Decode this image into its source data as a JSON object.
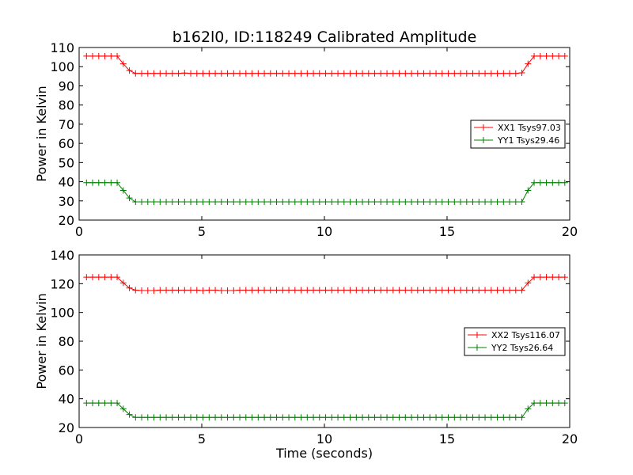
{
  "figure": {
    "title": "b162l0, ID:118249 Calibrated Amplitude"
  },
  "chart_data": [
    {
      "type": "line",
      "title": "b162l0, ID:118249 Calibrated Amplitude",
      "xlabel": "",
      "ylabel": "Power in Kelvin",
      "xlim": [
        0,
        20
      ],
      "ylim": [
        20,
        110
      ],
      "xticks": [
        0,
        5,
        10,
        15,
        20
      ],
      "yticks": [
        20,
        30,
        40,
        50,
        60,
        70,
        80,
        90,
        100,
        110
      ],
      "grid": false,
      "legend_position": "center-right",
      "x": [
        0.3,
        0.55,
        0.8,
        1.05,
        1.3,
        1.55,
        1.8,
        2.05,
        2.3,
        2.55,
        2.8,
        3.05,
        3.3,
        3.55,
        3.8,
        4.05,
        4.3,
        4.55,
        4.8,
        5.05,
        5.3,
        5.55,
        5.8,
        6.05,
        6.3,
        6.55,
        6.8,
        7.05,
        7.3,
        7.55,
        7.8,
        8.05,
        8.3,
        8.55,
        8.8,
        9.05,
        9.3,
        9.55,
        9.8,
        10.05,
        10.3,
        10.55,
        10.8,
        11.05,
        11.3,
        11.55,
        11.8,
        12.05,
        12.3,
        12.55,
        12.8,
        13.05,
        13.3,
        13.55,
        13.8,
        14.05,
        14.3,
        14.55,
        14.8,
        15.05,
        15.3,
        15.55,
        15.8,
        16.05,
        16.3,
        16.55,
        16.8,
        17.05,
        17.3,
        17.55,
        17.8,
        18.05,
        18.3,
        18.55,
        18.8,
        19.05,
        19.3,
        19.55,
        19.8
      ],
      "series": [
        {
          "name": "XX1 Tsys97.03",
          "color": "#ff0000",
          "values": [
            105.5,
            105.5,
            105.5,
            105.5,
            105.5,
            105.5,
            101.5,
            98,
            96.5,
            96.5,
            96.5,
            96.5,
            96.5,
            96.5,
            96.5,
            96.5,
            96.7,
            96.5,
            96.5,
            96.5,
            96.5,
            96.5,
            96.5,
            96.5,
            96.5,
            96.5,
            96.5,
            96.5,
            96.5,
            96.5,
            96.5,
            96.5,
            96.5,
            96.5,
            96.5,
            96.5,
            96.5,
            96.5,
            96.5,
            96.5,
            96.5,
            96.5,
            96.5,
            96.5,
            96.5,
            96.5,
            96.5,
            96.5,
            96.5,
            96.5,
            96.5,
            96.5,
            96.5,
            96.5,
            96.5,
            96.5,
            96.5,
            96.5,
            96.5,
            96.5,
            96.5,
            96.5,
            96.5,
            96.5,
            96.5,
            96.5,
            96.5,
            96.5,
            96.5,
            96.5,
            96.5,
            96.8,
            101.5,
            105.5,
            105.5,
            105.5,
            105.5,
            105.5,
            105.5
          ]
        },
        {
          "name": "YY1 Tsys29.46",
          "color": "#008000",
          "values": [
            39.5,
            39.5,
            39.5,
            39.5,
            39.5,
            39.5,
            35.5,
            31.5,
            29.5,
            29.5,
            29.5,
            29.5,
            29.5,
            29.5,
            29.5,
            29.5,
            29.5,
            29.5,
            29.5,
            29.5,
            29.5,
            29.5,
            29.5,
            29.5,
            29.5,
            29.5,
            29.5,
            29.5,
            29.5,
            29.5,
            29.5,
            29.5,
            29.5,
            29.5,
            29.5,
            29.5,
            29.5,
            29.5,
            29.5,
            29.5,
            29.5,
            29.5,
            29.5,
            29.5,
            29.5,
            29.5,
            29.5,
            29.5,
            29.5,
            29.5,
            29.5,
            29.5,
            29.5,
            29.5,
            29.5,
            29.5,
            29.5,
            29.5,
            29.5,
            29.5,
            29.5,
            29.5,
            29.5,
            29.5,
            29.5,
            29.5,
            29.5,
            29.5,
            29.5,
            29.5,
            29.5,
            29.5,
            35.5,
            39.5,
            39.5,
            39.5,
            39.5,
            39.5,
            39.5
          ]
        }
      ]
    },
    {
      "type": "line",
      "title": "",
      "xlabel": "Time (seconds)",
      "ylabel": "Power in Kelvin",
      "xlim": [
        0,
        20
      ],
      "ylim": [
        20,
        140
      ],
      "xticks": [
        0,
        5,
        10,
        15,
        20
      ],
      "yticks": [
        20,
        40,
        60,
        80,
        100,
        120,
        140
      ],
      "grid": false,
      "legend_position": "center-right",
      "x": [
        0.3,
        0.55,
        0.8,
        1.05,
        1.3,
        1.55,
        1.8,
        2.05,
        2.3,
        2.55,
        2.8,
        3.05,
        3.3,
        3.55,
        3.8,
        4.05,
        4.3,
        4.55,
        4.8,
        5.05,
        5.3,
        5.55,
        5.8,
        6.05,
        6.3,
        6.55,
        6.8,
        7.05,
        7.3,
        7.55,
        7.8,
        8.05,
        8.3,
        8.55,
        8.8,
        9.05,
        9.3,
        9.55,
        9.8,
        10.05,
        10.3,
        10.55,
        10.8,
        11.05,
        11.3,
        11.55,
        11.8,
        12.05,
        12.3,
        12.55,
        12.8,
        13.05,
        13.3,
        13.55,
        13.8,
        14.05,
        14.3,
        14.55,
        14.8,
        15.05,
        15.3,
        15.55,
        15.8,
        16.05,
        16.3,
        16.55,
        16.8,
        17.05,
        17.3,
        17.55,
        17.8,
        18.05,
        18.3,
        18.55,
        18.8,
        19.05,
        19.3,
        19.55,
        19.8
      ],
      "series": [
        {
          "name": "XX2 Tsys116.07",
          "color": "#ff0000",
          "values": [
            124.5,
            124.5,
            124.5,
            124.5,
            124.5,
            124.5,
            120.5,
            117,
            115.5,
            115.2,
            115.2,
            115.2,
            115.5,
            115.5,
            115.5,
            115.5,
            115.5,
            115.5,
            115.5,
            115.2,
            115.5,
            115.5,
            115.2,
            115.2,
            115.2,
            115.5,
            115.5,
            115.5,
            115.5,
            115.5,
            115.5,
            115.5,
            115.5,
            115.5,
            115.5,
            115.5,
            115.5,
            115.5,
            115.5,
            115.5,
            115.5,
            115.5,
            115.5,
            115.5,
            115.5,
            115.5,
            115.5,
            115.5,
            115.5,
            115.5,
            115.5,
            115.5,
            115.5,
            115.5,
            115.5,
            115.5,
            115.5,
            115.5,
            115.5,
            115.5,
            115.5,
            115.5,
            115.5,
            115.5,
            115.5,
            115.5,
            115.5,
            115.5,
            115.5,
            115.5,
            115.5,
            115.5,
            120.5,
            124.5,
            124.5,
            124.5,
            124.5,
            124.5,
            124.5
          ]
        },
        {
          "name": "YY2 Tsys26.64",
          "color": "#008000",
          "values": [
            37,
            37,
            37,
            37,
            37,
            37,
            33,
            29,
            27,
            27,
            27,
            27,
            27,
            27,
            27,
            27,
            27,
            27,
            27,
            27,
            27,
            27,
            27,
            27,
            27,
            27,
            27,
            27,
            27,
            27,
            27,
            27,
            27,
            27,
            27,
            27,
            27,
            27,
            27,
            27,
            27,
            27,
            27,
            27,
            27,
            27,
            27,
            27,
            27,
            27,
            27,
            27,
            27,
            27,
            27,
            27,
            27,
            27,
            27,
            27,
            27,
            27,
            27,
            27,
            27,
            27,
            27,
            27,
            27,
            27,
            27,
            27,
            33,
            37,
            37,
            37,
            37,
            37,
            37
          ]
        }
      ]
    }
  ]
}
